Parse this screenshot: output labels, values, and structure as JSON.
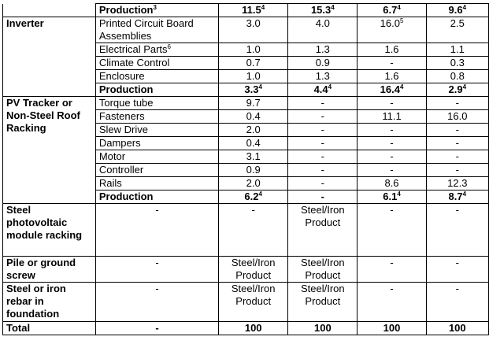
{
  "rows": [
    {
      "cat": "",
      "comp": "Production",
      "comp_sup": "3",
      "bold": true,
      "vals": [
        [
          "11.5",
          "4"
        ],
        [
          "15.3",
          "4"
        ],
        [
          "6.7",
          "4"
        ],
        [
          "9.6",
          "4"
        ]
      ]
    },
    {
      "cat": "Inverter",
      "comp": "Printed Circuit Board Assemblies",
      "vals": [
        [
          "3.0",
          ""
        ],
        [
          "4.0",
          ""
        ],
        [
          "16.0",
          "5"
        ],
        [
          "2.5",
          ""
        ]
      ]
    },
    {
      "comp": "Electrical Parts",
      "comp_sup": "6",
      "vals": [
        [
          "1.0",
          ""
        ],
        [
          "1.3",
          ""
        ],
        [
          "1.6",
          ""
        ],
        [
          "1.1",
          ""
        ]
      ]
    },
    {
      "comp": "Climate Control",
      "vals": [
        [
          "0.7",
          ""
        ],
        [
          "0.9",
          ""
        ],
        [
          "-",
          ""
        ],
        [
          "0.3",
          ""
        ]
      ]
    },
    {
      "comp": "Enclosure",
      "vals": [
        [
          "1.0",
          ""
        ],
        [
          "1.3",
          ""
        ],
        [
          "1.6",
          ""
        ],
        [
          "0.8",
          ""
        ]
      ]
    },
    {
      "comp": "Production",
      "bold": true,
      "vals": [
        [
          "3.3",
          "4"
        ],
        [
          "4.4",
          "4"
        ],
        [
          "16.4",
          "4"
        ],
        [
          "2.9",
          "4"
        ]
      ]
    },
    {
      "cat": "PV Tracker or Non-Steel Roof Racking",
      "comp": "Torque tube",
      "vals": [
        [
          "9.7",
          ""
        ],
        [
          "-",
          ""
        ],
        [
          "-",
          ""
        ],
        [
          "-",
          ""
        ]
      ]
    },
    {
      "comp": "Fasteners",
      "vals": [
        [
          "0.4",
          ""
        ],
        [
          "-",
          ""
        ],
        [
          "11.1",
          ""
        ],
        [
          "16.0",
          ""
        ]
      ]
    },
    {
      "comp": "Slew Drive",
      "vals": [
        [
          "2.0",
          ""
        ],
        [
          "-",
          ""
        ],
        [
          "-",
          ""
        ],
        [
          "-",
          ""
        ]
      ]
    },
    {
      "comp": "Dampers",
      "vals": [
        [
          "0.4",
          ""
        ],
        [
          "-",
          ""
        ],
        [
          "-",
          ""
        ],
        [
          "-",
          ""
        ]
      ]
    },
    {
      "comp": "Motor",
      "vals": [
        [
          "3.1",
          ""
        ],
        [
          "-",
          ""
        ],
        [
          "-",
          ""
        ],
        [
          "-",
          ""
        ]
      ]
    },
    {
      "comp": "Controller",
      "vals": [
        [
          "0.9",
          ""
        ],
        [
          "-",
          ""
        ],
        [
          "-",
          ""
        ],
        [
          "-",
          ""
        ]
      ]
    },
    {
      "comp": "Rails",
      "vals": [
        [
          "2.0",
          ""
        ],
        [
          "-",
          ""
        ],
        [
          "8.6",
          ""
        ],
        [
          "12.3",
          ""
        ]
      ]
    },
    {
      "comp": "Production",
      "bold": true,
      "vals": [
        [
          "6.2",
          "4"
        ],
        [
          "-",
          ""
        ],
        [
          "6.1",
          "4"
        ],
        [
          "8.7",
          "4"
        ]
      ]
    },
    {
      "cat": "Steel photovoltaic module racking",
      "comp": "-",
      "vals": [
        [
          "-",
          ""
        ],
        [
          "Steel/Iron Product",
          ""
        ],
        [
          "-",
          ""
        ],
        [
          "-",
          ""
        ]
      ]
    },
    {
      "cat": "Pile or ground screw",
      "comp": "-",
      "vals": [
        [
          "Steel/Iron Product",
          ""
        ],
        [
          "Steel/Iron Product",
          ""
        ],
        [
          "-",
          ""
        ],
        [
          "-",
          ""
        ]
      ]
    },
    {
      "cat": "Steel or iron rebar in foundation",
      "comp": "-",
      "vals": [
        [
          "Steel/Iron Product",
          ""
        ],
        [
          "Steel/Iron Product",
          ""
        ],
        [
          "-",
          ""
        ],
        [
          "-",
          ""
        ]
      ]
    },
    {
      "cat": "Total",
      "comp": "-",
      "bold": true,
      "vals": [
        [
          "100",
          ""
        ],
        [
          "100",
          ""
        ],
        [
          "100",
          ""
        ],
        [
          "100",
          ""
        ]
      ]
    }
  ]
}
